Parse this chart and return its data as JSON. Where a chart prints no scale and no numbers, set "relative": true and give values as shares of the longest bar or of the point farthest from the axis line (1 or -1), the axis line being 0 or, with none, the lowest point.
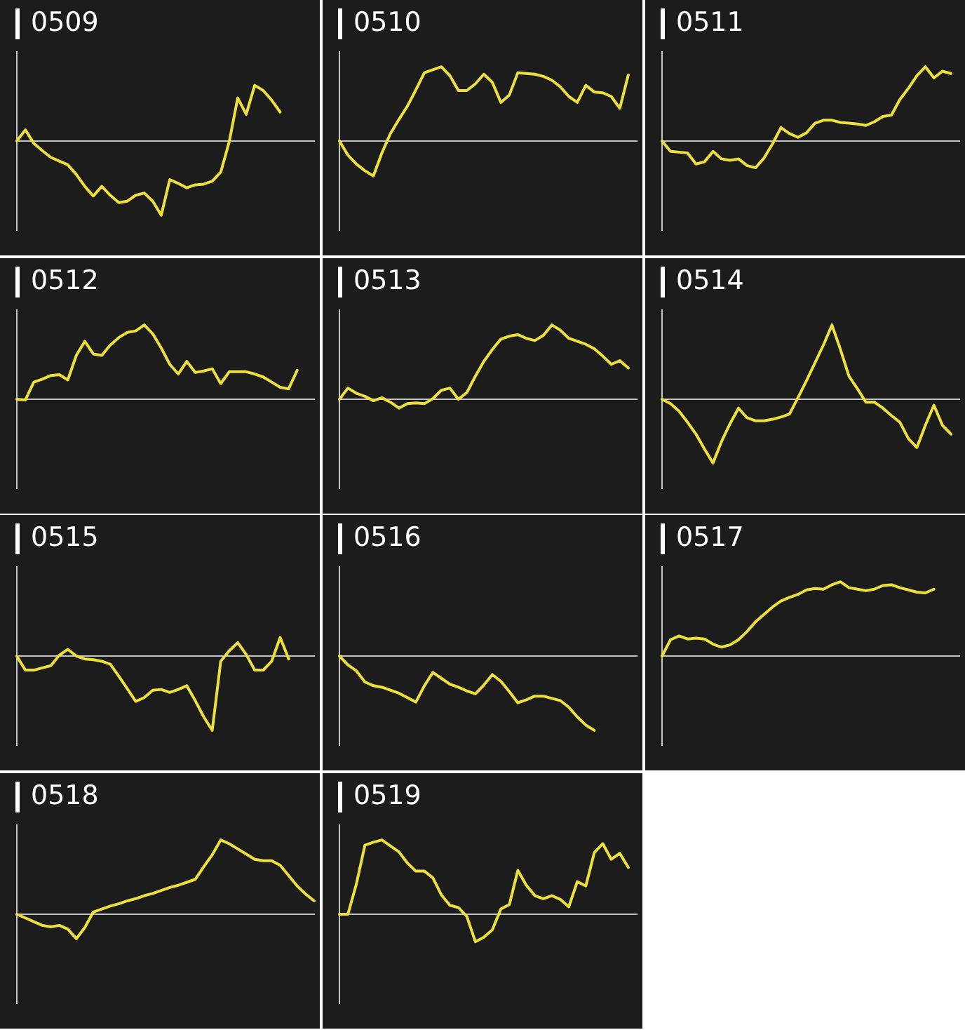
{
  "chart_data": [
    {
      "type": "line",
      "title": "0509",
      "relative": true,
      "color": "#eee03c",
      "categories": [
        null,
        null,
        null,
        null,
        null,
        null,
        null,
        null,
        null,
        null,
        null,
        null,
        null,
        null,
        null,
        null,
        null,
        null,
        null,
        null,
        null,
        null,
        null,
        null,
        null,
        null,
        null,
        null,
        null,
        null,
        null,
        null,
        null,
        null,
        null,
        null
      ],
      "values": [
        0,
        0.15,
        -0.03,
        -0.13,
        -0.22,
        -0.27,
        -0.32,
        -0.45,
        -0.61,
        -0.74,
        -0.61,
        -0.73,
        -0.83,
        -0.81,
        -0.73,
        -0.7,
        -0.81,
        -1,
        -0.52,
        -0.57,
        -0.63,
        -0.59,
        -0.58,
        -0.54,
        -0.42,
        -0.01,
        0.58,
        0.36,
        0.75,
        0.68,
        0.55,
        0.39,
        null,
        null,
        null,
        null
      ]
    },
    {
      "type": "line",
      "title": "0510",
      "relative": true,
      "color": "#eee03c",
      "categories": [
        null,
        null,
        null,
        null,
        null,
        null,
        null,
        null,
        null,
        null,
        null,
        null,
        null,
        null,
        null,
        null,
        null,
        null,
        null,
        null,
        null,
        null,
        null,
        null,
        null,
        null,
        null,
        null,
        null,
        null,
        null,
        null,
        null,
        null,
        null,
        null
      ],
      "values": [
        0,
        -0.19,
        -0.31,
        -0.4,
        -0.47,
        -0.16,
        0.1,
        0.29,
        0.47,
        0.69,
        0.92,
        0.96,
        1,
        0.88,
        0.68,
        0.68,
        0.77,
        0.9,
        0.79,
        0.52,
        0.62,
        0.92,
        0.91,
        0.9,
        0.87,
        0.82,
        0.73,
        0.6,
        0.52,
        0.75,
        0.66,
        0.65,
        0.6,
        0.44,
        0.89,
        null
      ]
    },
    {
      "type": "line",
      "title": "0511",
      "relative": true,
      "color": "#eee03c",
      "categories": [
        null,
        null,
        null,
        null,
        null,
        null,
        null,
        null,
        null,
        null,
        null,
        null,
        null,
        null,
        null,
        null,
        null,
        null,
        null,
        null,
        null,
        null,
        null,
        null,
        null,
        null,
        null,
        null,
        null,
        null,
        null,
        null,
        null,
        null,
        null,
        null
      ],
      "values": [
        0,
        -0.14,
        -0.15,
        -0.16,
        -0.31,
        -0.28,
        -0.14,
        -0.24,
        -0.26,
        -0.24,
        -0.33,
        -0.36,
        -0.23,
        -0.04,
        0.18,
        0.1,
        0.05,
        0.11,
        0.24,
        0.28,
        0.28,
        0.25,
        0.24,
        0.23,
        0.21,
        0.26,
        0.33,
        0.35,
        0.56,
        0.71,
        0.88,
        1,
        0.85,
        0.94,
        0.91,
        null
      ]
    },
    {
      "type": "line",
      "title": "0512",
      "relative": true,
      "color": "#eee03c",
      "categories": [
        null,
        null,
        null,
        null,
        null,
        null,
        null,
        null,
        null,
        null,
        null,
        null,
        null,
        null,
        null,
        null,
        null,
        null,
        null,
        null,
        null,
        null,
        null,
        null,
        null,
        null,
        null,
        null,
        null,
        null,
        null,
        null,
        null,
        null,
        null,
        null
      ],
      "values": [
        0,
        -0.01,
        0.23,
        0.27,
        0.32,
        0.33,
        0.26,
        0.59,
        0.78,
        0.61,
        0.59,
        0.73,
        0.83,
        0.9,
        0.92,
        1,
        0.88,
        0.69,
        0.47,
        0.34,
        0.51,
        0.36,
        0.38,
        0.41,
        0.21,
        0.37,
        0.37,
        0.37,
        0.34,
        0.3,
        0.23,
        0.16,
        0.14,
        0.39,
        null,
        null
      ]
    },
    {
      "type": "line",
      "title": "0513",
      "relative": true,
      "color": "#eee03c",
      "categories": [
        null,
        null,
        null,
        null,
        null,
        null,
        null,
        null,
        null,
        null,
        null,
        null,
        null,
        null,
        null,
        null,
        null,
        null,
        null,
        null,
        null,
        null,
        null,
        null,
        null,
        null,
        null,
        null,
        null,
        null,
        null,
        null,
        null,
        null,
        null,
        null
      ],
      "values": [
        0,
        0.15,
        0.08,
        0.04,
        -0.02,
        0.02,
        -0.04,
        -0.12,
        -0.06,
        -0.05,
        -0.06,
        0.01,
        0.12,
        0.15,
        0,
        0.09,
        0.31,
        0.51,
        0.67,
        0.81,
        0.85,
        0.87,
        0.82,
        0.79,
        0.86,
        1,
        0.93,
        0.82,
        0.78,
        0.74,
        0.68,
        0.58,
        0.47,
        0.52,
        0.42,
        null
      ]
    },
    {
      "type": "line",
      "title": "0514",
      "relative": true,
      "color": "#eee03c",
      "categories": [
        null,
        null,
        null,
        null,
        null,
        null,
        null,
        null,
        null,
        null,
        null,
        null,
        null,
        null,
        null,
        null,
        null,
        null,
        null,
        null,
        null,
        null,
        null,
        null,
        null,
        null,
        null,
        null,
        null,
        null,
        null,
        null,
        null,
        null,
        null,
        null
      ],
      "values": [
        0,
        -0.06,
        -0.16,
        -0.31,
        -0.47,
        -0.67,
        -0.86,
        -0.57,
        -0.33,
        -0.12,
        -0.25,
        -0.29,
        -0.29,
        -0.27,
        -0.24,
        -0.2,
        0.02,
        0.25,
        0.49,
        0.73,
        1,
        0.67,
        0.31,
        0.14,
        -0.04,
        -0.04,
        -0.12,
        -0.22,
        -0.31,
        -0.53,
        -0.65,
        -0.35,
        -0.08,
        -0.35,
        -0.47,
        null
      ]
    },
    {
      "type": "line",
      "title": "0515",
      "relative": true,
      "color": "#eee03c",
      "categories": [
        null,
        null,
        null,
        null,
        null,
        null,
        null,
        null,
        null,
        null,
        null,
        null,
        null,
        null,
        null,
        null,
        null,
        null,
        null,
        null,
        null,
        null,
        null,
        null,
        null,
        null,
        null,
        null,
        null,
        null,
        null,
        null,
        null,
        null,
        null,
        null
      ],
      "values": [
        0,
        -0.19,
        -0.19,
        -0.16,
        -0.13,
        0.01,
        0.09,
        0,
        -0.04,
        -0.05,
        -0.07,
        -0.11,
        -0.27,
        -0.44,
        -0.61,
        -0.56,
        -0.46,
        -0.45,
        -0.49,
        -0.45,
        -0.4,
        -0.6,
        -0.82,
        -1,
        -0.07,
        0.07,
        0.18,
        0.02,
        -0.19,
        -0.19,
        -0.07,
        0.25,
        -0.04,
        null,
        null,
        null
      ]
    },
    {
      "type": "line",
      "title": "0516",
      "relative": true,
      "color": "#eee03c",
      "categories": [
        null,
        null,
        null,
        null,
        null,
        null,
        null,
        null,
        null,
        null,
        null,
        null,
        null,
        null,
        null,
        null,
        null,
        null,
        null,
        null,
        null,
        null,
        null,
        null,
        null,
        null,
        null,
        null,
        null,
        null,
        null,
        null,
        null,
        null,
        null,
        null
      ],
      "values": [
        0,
        -0.12,
        -0.2,
        -0.35,
        -0.4,
        -0.42,
        -0.46,
        -0.5,
        -0.56,
        -0.62,
        -0.4,
        -0.22,
        -0.3,
        -0.38,
        -0.42,
        -0.47,
        -0.51,
        -0.39,
        -0.25,
        -0.34,
        -0.48,
        -0.63,
        -0.59,
        -0.54,
        -0.54,
        -0.57,
        -0.6,
        -0.69,
        -0.82,
        -0.93,
        -1,
        null,
        null,
        null,
        null,
        null
      ]
    },
    {
      "type": "line",
      "title": "0517",
      "relative": true,
      "color": "#eee03c",
      "categories": [
        null,
        null,
        null,
        null,
        null,
        null,
        null,
        null,
        null,
        null,
        null,
        null,
        null,
        null,
        null,
        null,
        null,
        null,
        null,
        null,
        null,
        null,
        null,
        null,
        null,
        null,
        null,
        null,
        null,
        null,
        null,
        null,
        null,
        null,
        null,
        null
      ],
      "values": [
        0,
        0.22,
        0.27,
        0.23,
        0.24,
        0.23,
        0.16,
        0.12,
        0.15,
        0.22,
        0.33,
        0.46,
        0.56,
        0.66,
        0.74,
        0.79,
        0.83,
        0.89,
        0.91,
        0.9,
        0.96,
        1,
        0.92,
        0.9,
        0.88,
        0.9,
        0.95,
        0.96,
        0.92,
        0.89,
        0.86,
        0.85,
        0.9,
        null,
        null,
        null
      ]
    },
    {
      "type": "line",
      "title": "0518",
      "relative": true,
      "color": "#eee03c",
      "categories": [
        null,
        null,
        null,
        null,
        null,
        null,
        null,
        null,
        null,
        null,
        null,
        null,
        null,
        null,
        null,
        null,
        null,
        null,
        null,
        null,
        null,
        null,
        null,
        null,
        null,
        null,
        null,
        null,
        null,
        null,
        null,
        null,
        null,
        null,
        null,
        null
      ],
      "values": [
        0,
        -0.05,
        -0.1,
        -0.15,
        -0.17,
        -0.15,
        -0.2,
        -0.33,
        -0.18,
        0.03,
        0.07,
        0.11,
        0.14,
        0.18,
        0.21,
        0.25,
        0.28,
        0.32,
        0.36,
        0.39,
        0.43,
        0.47,
        0.64,
        0.8,
        1,
        0.95,
        0.88,
        0.81,
        0.74,
        0.72,
        0.72,
        0.66,
        0.52,
        0.38,
        0.27,
        0.18
      ]
    },
    {
      "type": "line",
      "title": "0519",
      "relative": true,
      "color": "#eee03c",
      "categories": [
        null,
        null,
        null,
        null,
        null,
        null,
        null,
        null,
        null,
        null,
        null,
        null,
        null,
        null,
        null,
        null,
        null,
        null,
        null,
        null,
        null,
        null,
        null,
        null,
        null,
        null,
        null,
        null,
        null,
        null,
        null,
        null,
        null,
        null,
        null,
        null
      ],
      "values": [
        0,
        0,
        0.41,
        0.93,
        0.97,
        1,
        0.92,
        0.84,
        0.69,
        0.58,
        0.58,
        0.49,
        0.26,
        0.12,
        0.09,
        -0.03,
        -0.37,
        -0.31,
        -0.21,
        0.07,
        0.13,
        0.59,
        0.39,
        0.25,
        0.21,
        0.25,
        0.2,
        0.1,
        0.44,
        0.38,
        0.83,
        0.95,
        0.74,
        0.82,
        0.63,
        null
      ]
    }
  ]
}
